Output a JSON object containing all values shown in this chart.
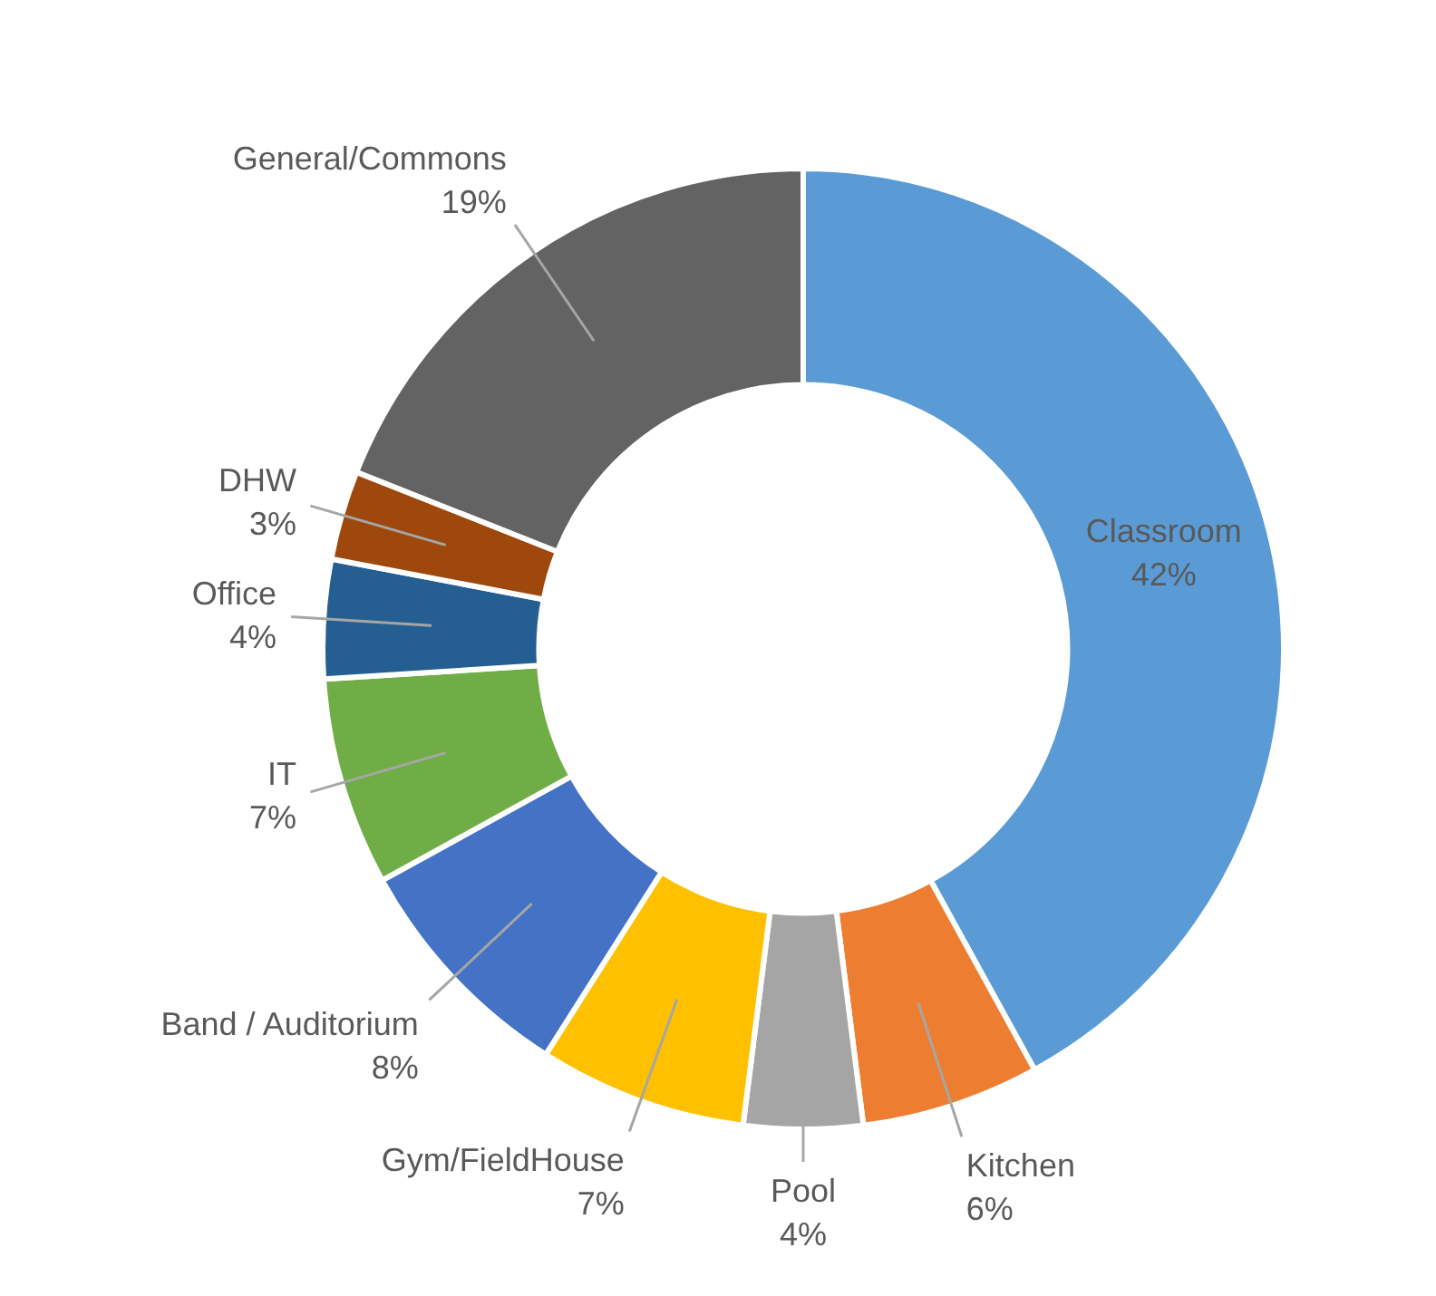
{
  "chart_data": {
    "type": "donut",
    "categories": [
      "Classroom",
      "Kitchen",
      "Pool",
      "Gym/FieldHouse",
      "Band / Auditorium",
      "IT",
      "Office",
      "DHW",
      "General/Commons"
    ],
    "values": [
      42,
      6,
      4,
      7,
      8,
      7,
      4,
      3,
      19
    ],
    "value_labels": [
      "42%",
      "6%",
      "4%",
      "7%",
      "8%",
      "7%",
      "4%",
      "3%",
      "19%"
    ],
    "colors": [
      "#5b9bd5",
      "#ed7d31",
      "#a5a5a5",
      "#ffc000",
      "#4472c4",
      "#70ad47",
      "#255e91",
      "#9e480e",
      "#636363"
    ],
    "legend": false
  }
}
